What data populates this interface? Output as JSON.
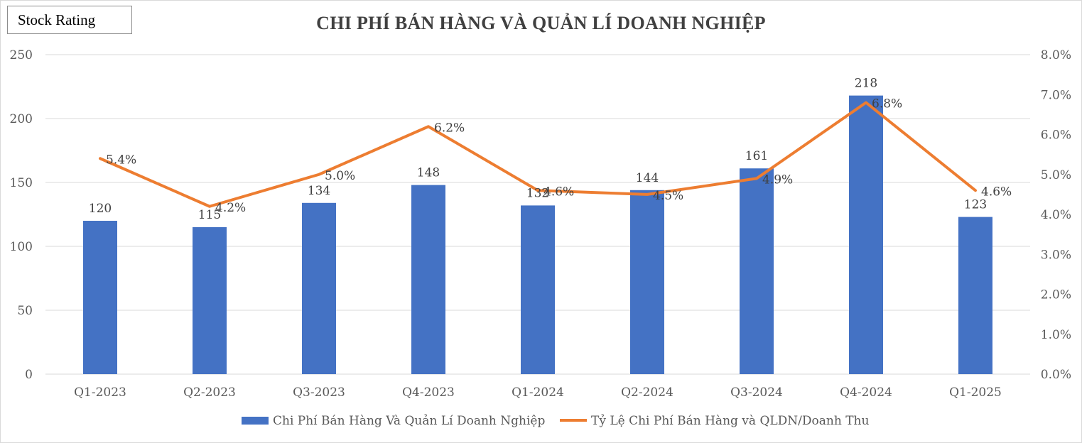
{
  "badge": "Stock Rating",
  "chart_data": {
    "type": "bar",
    "title": "CHI PHÍ BÁN HÀNG VÀ QUẢN LÍ DOANH NGHIỆP",
    "categories": [
      "Q1-2023",
      "Q2-2023",
      "Q3-2023",
      "Q4-2023",
      "Q1-2024",
      "Q2-2024",
      "Q3-2024",
      "Q4-2024",
      "Q1-2025"
    ],
    "series": [
      {
        "name": "Chi Phí Bán Hàng Và Quản Lí Doanh Nghiệp",
        "type": "bar",
        "axis": "left",
        "color": "#4472C4",
        "values": [
          120,
          115,
          134,
          148,
          132,
          144,
          161,
          218,
          123
        ],
        "labels": [
          "120",
          "115",
          "134",
          "148",
          "132",
          "144",
          "161",
          "218",
          "123"
        ]
      },
      {
        "name": "Tỷ Lệ Chi Phí Bán Hàng và QLDN/Doanh Thu",
        "type": "line",
        "axis": "right",
        "color": "#ED7D31",
        "values": [
          5.4,
          4.2,
          5.0,
          6.2,
          4.6,
          4.5,
          4.9,
          6.8,
          4.6
        ],
        "labels": [
          "5.4%",
          "4.2%",
          "5.0%",
          "6.2%",
          "4.6%",
          "4.5%",
          "4.9%",
          "6.8%",
          "4.6%"
        ]
      }
    ],
    "y_left": {
      "ylim": [
        0,
        250
      ],
      "ticks": [
        "0",
        "50",
        "100",
        "150",
        "200",
        "250"
      ]
    },
    "y_right": {
      "ylim": [
        0,
        8
      ],
      "ticks": [
        "0.0%",
        "1.0%",
        "2.0%",
        "3.0%",
        "4.0%",
        "5.0%",
        "6.0%",
        "7.0%",
        "8.0%"
      ]
    },
    "grid": true,
    "legend": "bottom"
  }
}
